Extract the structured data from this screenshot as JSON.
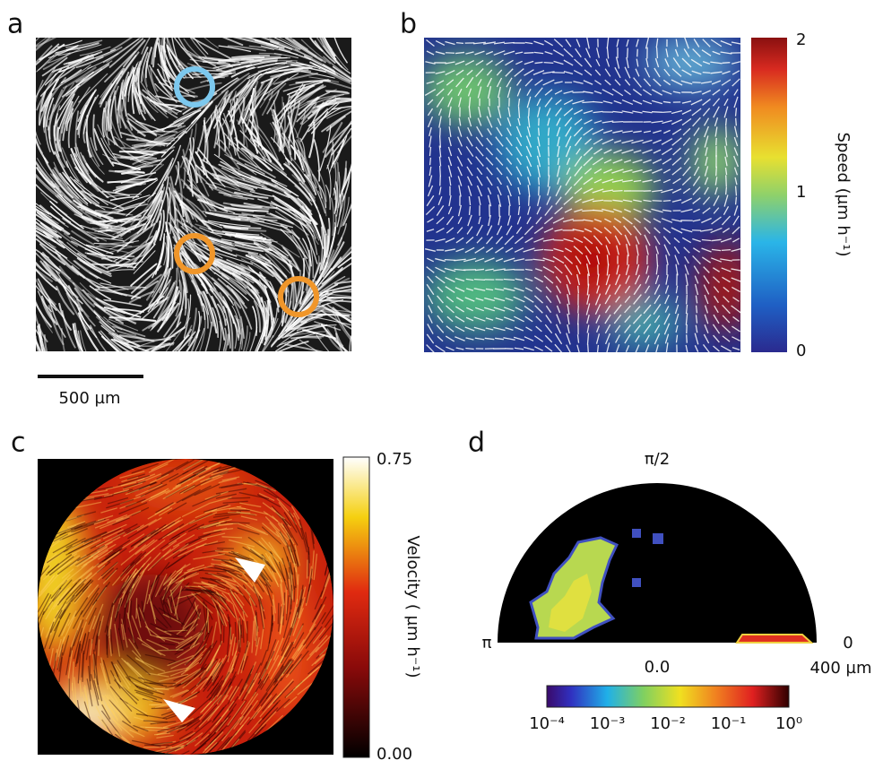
{
  "panel_a": {
    "letter": "a",
    "scale_bar": "500 µm"
  },
  "panel_b": {
    "letter": "b",
    "colorbar_label": "Speed (µm h⁻¹)",
    "colorbar_ticks": [
      "2",
      "1",
      "0"
    ]
  },
  "panel_c": {
    "letter": "c",
    "colorbar_label": "Velocity ( µm h⁻¹)",
    "colorbar_ticks": [
      "0.75",
      "0.00"
    ]
  },
  "panel_d": {
    "letter": "d",
    "angle_labels": [
      "π/2",
      "π",
      "0"
    ],
    "radial_labels": [
      "0.0",
      "400 µm"
    ],
    "colorbar_ticks": [
      "10⁻⁴",
      "10⁻³",
      "10⁻²",
      "10⁻¹",
      "10⁰"
    ]
  }
}
